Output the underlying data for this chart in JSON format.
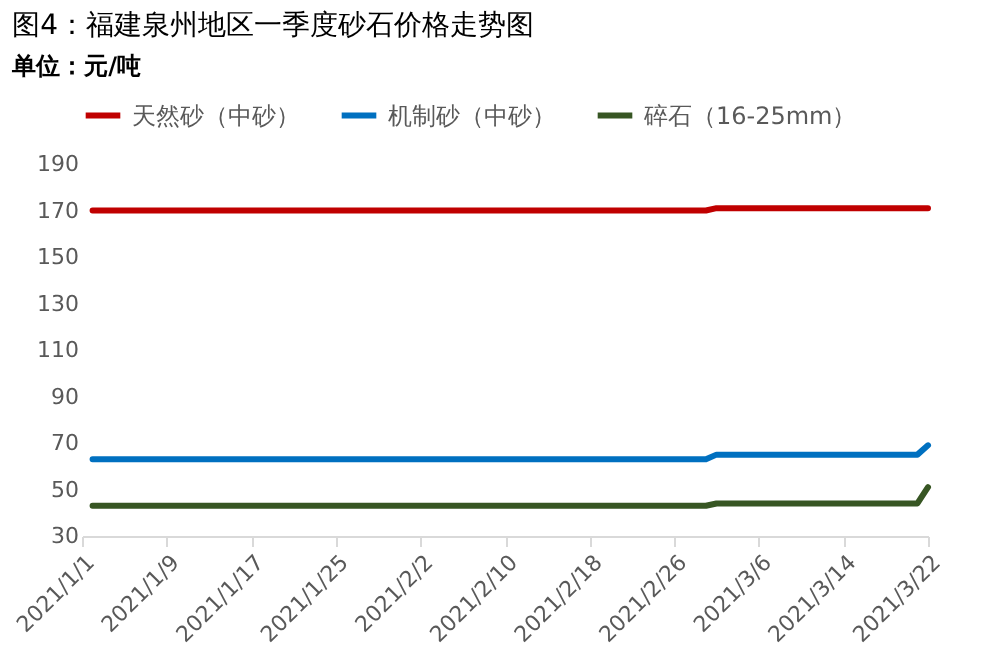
{
  "chart_data": {
    "type": "line",
    "title": "图4：福建泉州地区一季度砂石价格走势图",
    "subtitle": "单位：元/吨",
    "x": [
      "2021-01-02",
      "2021-03-01",
      "2021-03-02",
      "2021-03-21",
      "2021-03-22"
    ],
    "series": [
      {
        "name": "天然砂（中砂）",
        "color": "#c00000",
        "values": [
          170,
          170,
          171,
          171,
          171
        ]
      },
      {
        "name": "机制砂（中砂）",
        "color": "#0070c0",
        "values": [
          63,
          63,
          65,
          65,
          69
        ]
      },
      {
        "name": "碎石（16-25mm）",
        "color": "#375623",
        "values": [
          43,
          43,
          44,
          44,
          51
        ]
      }
    ],
    "xlim": [
      "2021-01-01",
      "2021-03-22"
    ],
    "xticks": [
      {
        "value": "2021-01-01",
        "label": "2021/1/1"
      },
      {
        "value": "2021-01-09",
        "label": "2021/1/9"
      },
      {
        "value": "2021-01-17",
        "label": "2021/1/17"
      },
      {
        "value": "2021-01-25",
        "label": "2021/1/25"
      },
      {
        "value": "2021-02-02",
        "label": "2021/2/2"
      },
      {
        "value": "2021-02-10",
        "label": "2021/2/10"
      },
      {
        "value": "2021-02-18",
        "label": "2021/2/18"
      },
      {
        "value": "2021-02-26",
        "label": "2021/2/26"
      },
      {
        "value": "2021-03-06",
        "label": "2021/3/6"
      },
      {
        "value": "2021-03-14",
        "label": "2021/3/14"
      },
      {
        "value": "2021-03-22",
        "label": "2021/3/22"
      }
    ],
    "ylim": [
      30,
      190
    ],
    "yticks": [
      30,
      50,
      70,
      90,
      110,
      130,
      150,
      170,
      190
    ],
    "grid": false,
    "legend": "top",
    "marker": "none",
    "line_style": "solid"
  }
}
